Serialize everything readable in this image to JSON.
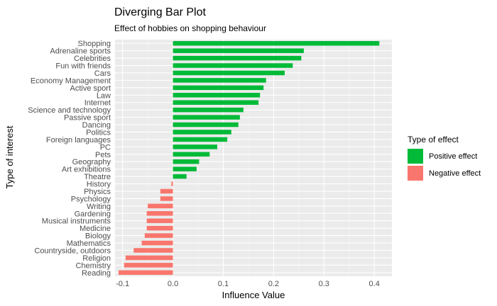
{
  "chart_data": {
    "type": "bar",
    "orientation": "horizontal",
    "title": "Diverging Bar Plot",
    "subtitle": "Effect of hobbies on shopping behaviour",
    "xlabel": "Influence Value",
    "ylabel": "Type of interest",
    "xlim": [
      -0.115,
      0.435
    ],
    "xticks": [
      -0.1,
      0.0,
      0.1,
      0.2,
      0.3,
      0.4
    ],
    "xtick_labels": [
      "-0.1",
      "0.0",
      "0.1",
      "0.2",
      "0.3",
      "0.4"
    ],
    "grid": true,
    "legend": {
      "title": "Type of effect",
      "placement": "right",
      "items": [
        {
          "label": "Positive effect",
          "color": "#00ba38"
        },
        {
          "label": "Negative effect",
          "color": "#f8766d"
        }
      ]
    },
    "categories": [
      "Shopping",
      "Adrenaline sports",
      "Celebrities",
      "Fun with friends",
      "Cars",
      "Economy Management",
      "Active sport",
      "Law",
      "Internet",
      "Science and technology",
      "Passive sport",
      "Dancing",
      "Politics",
      "Foreign languages",
      "PC",
      "Pets",
      "Geography",
      "Art exhibitions",
      "Theatre",
      "History",
      "Physics",
      "Psychology",
      "Writing",
      "Gardening",
      "Musical instruments",
      "Medicine",
      "Biology",
      "Mathematics",
      "Countryside, outdoors",
      "Religion",
      "Chemistry",
      "Reading"
    ],
    "values": [
      0.41,
      0.26,
      0.255,
      0.238,
      0.222,
      0.185,
      0.18,
      0.173,
      0.17,
      0.14,
      0.133,
      0.13,
      0.116,
      0.108,
      0.088,
      0.073,
      0.052,
      0.047,
      0.027,
      -0.003,
      -0.025,
      -0.025,
      -0.05,
      -0.052,
      -0.052,
      -0.052,
      -0.056,
      -0.062,
      -0.078,
      -0.094,
      -0.097,
      -0.108
    ]
  }
}
